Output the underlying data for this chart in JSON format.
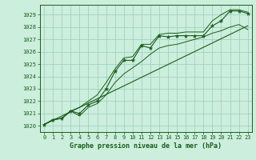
{
  "title": "Graphe pression niveau de la mer (hPa)",
  "xlim": [
    -0.5,
    23.5
  ],
  "ylim": [
    1019.5,
    1029.8
  ],
  "yticks": [
    1020,
    1021,
    1022,
    1023,
    1024,
    1025,
    1026,
    1027,
    1028,
    1029
  ],
  "xticks": [
    0,
    1,
    2,
    3,
    4,
    5,
    6,
    7,
    8,
    9,
    10,
    11,
    12,
    13,
    14,
    15,
    16,
    17,
    18,
    19,
    20,
    21,
    22,
    23
  ],
  "bg_color": "#cceedd",
  "grid_color": "#99ccbb",
  "line_color": "#1a5c1a",
  "pressure_data": [
    1020.1,
    1020.5,
    1020.6,
    1021.2,
    1021.0,
    1021.7,
    1022.0,
    1023.0,
    1024.4,
    1025.3,
    1025.3,
    1026.5,
    1026.3,
    1027.3,
    1027.2,
    1027.3,
    1027.3,
    1027.3,
    1027.3,
    1028.1,
    1028.5,
    1029.3,
    1029.3,
    1029.1
  ],
  "min_data": [
    1020.1,
    1020.5,
    1020.6,
    1021.2,
    1020.8,
    1021.5,
    1021.8,
    1022.5,
    1023.5,
    1024.2,
    1024.7,
    1025.2,
    1025.8,
    1026.3,
    1026.5,
    1026.6,
    1026.8,
    1027.0,
    1027.2,
    1027.5,
    1027.7,
    1028.0,
    1028.2,
    1027.8
  ],
  "max_data": [
    1020.1,
    1020.5,
    1020.6,
    1021.2,
    1021.5,
    1022.0,
    1022.5,
    1023.5,
    1024.6,
    1025.5,
    1025.6,
    1026.6,
    1026.6,
    1027.4,
    1027.5,
    1027.5,
    1027.6,
    1027.6,
    1027.6,
    1028.5,
    1029.0,
    1029.4,
    1029.4,
    1029.2
  ],
  "trend_x": [
    0,
    23
  ],
  "trend_y": [
    1020.1,
    1028.1
  ]
}
